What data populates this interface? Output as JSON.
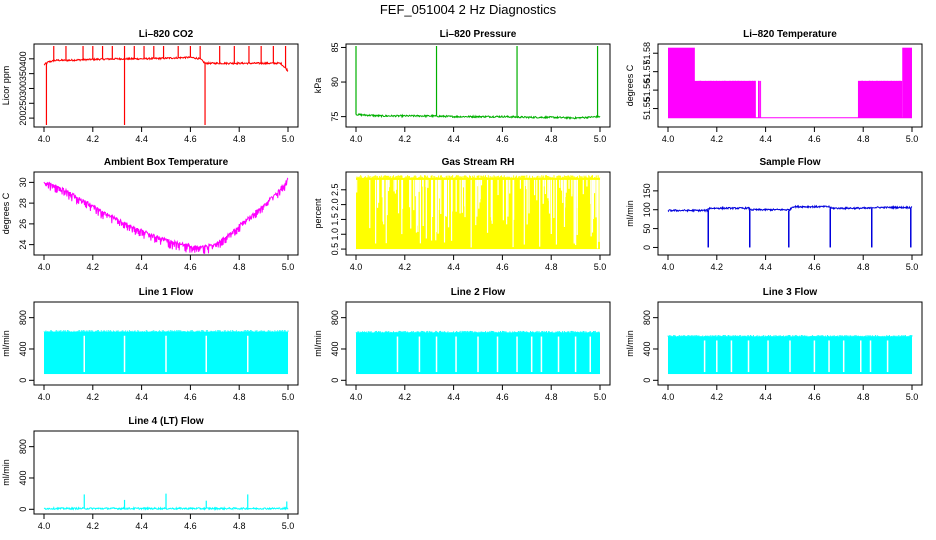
{
  "figure_title": "FEF_051004  2 Hz Diagnostics",
  "chart_data": [
    {
      "type": "line",
      "title": "Li–820 CO2",
      "xlabel": "",
      "ylabel": "Licor ppm",
      "xlim": [
        4.0,
        5.0
      ],
      "ylim": [
        170,
        450
      ],
      "xticks": [
        "4.0",
        "4.2",
        "4.4",
        "4.6",
        "4.8",
        "5.0"
      ],
      "yticks": [
        "200",
        "250",
        "300",
        "350",
        "400"
      ],
      "color": "#ff0000",
      "series": [
        {
          "x": [
            4.0,
            4.02,
            4.05,
            4.1,
            4.2,
            4.3,
            4.4,
            4.5,
            4.6,
            4.64,
            4.66,
            4.7,
            4.8,
            4.9,
            4.97,
            5.0
          ],
          "values": [
            380,
            390,
            395,
            395,
            398,
            400,
            400,
            402,
            405,
            400,
            385,
            385,
            385,
            385,
            385,
            360
          ]
        }
      ],
      "spikes_up": [
        4.04,
        4.09,
        4.16,
        4.2,
        4.24,
        4.28,
        4.33,
        4.37,
        4.41,
        4.45,
        4.49,
        4.55,
        4.6,
        4.64,
        4.72,
        4.78,
        4.84,
        4.89,
        4.94,
        4.99
      ],
      "spikes_down": [
        4.01,
        4.33,
        4.66
      ]
    },
    {
      "type": "line",
      "title": "Li–820 Pressure",
      "xlabel": "",
      "ylabel": "kPa",
      "xlim": [
        4.0,
        5.0
      ],
      "ylim": [
        73.5,
        85.5
      ],
      "xticks": [
        "4.0",
        "4.2",
        "4.4",
        "4.6",
        "4.8",
        "5.0"
      ],
      "yticks": [
        "75",
        "80",
        "85"
      ],
      "color": "#00b000",
      "series": [
        {
          "x": [
            4.0,
            4.1,
            4.2,
            4.3,
            4.4,
            4.5,
            4.6,
            4.7,
            4.8,
            4.9,
            5.0
          ],
          "values": [
            75.3,
            75.1,
            75.1,
            75.1,
            75.0,
            75.0,
            75.0,
            74.9,
            74.9,
            74.8,
            75.0
          ]
        }
      ],
      "spikes_up": [
        4.0,
        4.33,
        4.66,
        4.99
      ]
    },
    {
      "type": "area",
      "title": "Li–820 Temperature",
      "xlabel": "",
      "ylabel": "degrees C",
      "xlim": [
        4.0,
        5.0
      ],
      "ylim": [
        51.54,
        51.585
      ],
      "xticks": [
        "4.0",
        "4.2",
        "4.4",
        "4.6",
        "4.8",
        "5.0"
      ],
      "yticks": [
        "51.55",
        "51.56",
        "51.57",
        "51.58"
      ],
      "color": "#ff00ff",
      "segments": [
        {
          "x0": 4.0,
          "x1": 4.11,
          "low": 51.545,
          "high": 51.583
        },
        {
          "x0": 4.11,
          "x1": 4.36,
          "low": 51.545,
          "high": 51.565
        },
        {
          "x0": 4.78,
          "x1": 4.96,
          "low": 51.545,
          "high": 51.565
        },
        {
          "x0": 4.96,
          "x1": 5.0,
          "low": 51.545,
          "high": 51.583
        }
      ],
      "baseline": 51.545
    },
    {
      "type": "line",
      "title": "Ambient Box Temperature",
      "xlabel": "",
      "ylabel": "degrees C",
      "xlim": [
        4.0,
        5.0
      ],
      "ylim": [
        23,
        31
      ],
      "xticks": [
        "4.0",
        "4.2",
        "4.4",
        "4.6",
        "4.8",
        "5.0"
      ],
      "yticks": [
        "24",
        "26",
        "28",
        "30"
      ],
      "color": "#ff00ff",
      "series": [
        {
          "x": [
            4.0,
            4.05,
            4.1,
            4.15,
            4.2,
            4.25,
            4.3,
            4.35,
            4.4,
            4.45,
            4.5,
            4.55,
            4.6,
            4.65,
            4.7,
            4.75,
            4.8,
            4.85,
            4.9,
            4.95,
            5.0
          ],
          "values": [
            30.2,
            29.8,
            29.2,
            28.5,
            27.9,
            27.2,
            26.6,
            26.0,
            25.5,
            25.0,
            24.6,
            24.3,
            24.0,
            23.9,
            24.2,
            25.0,
            26.0,
            27.0,
            28.0,
            29.0,
            30.5
          ]
        }
      ],
      "band": 0.9
    },
    {
      "type": "area",
      "title": "Gas Stream RH",
      "xlabel": "",
      "ylabel": "percent",
      "xlim": [
        4.0,
        5.0
      ],
      "ylim": [
        0.3,
        3.1
      ],
      "xticks": [
        "4.0",
        "4.2",
        "4.4",
        "4.6",
        "4.8",
        "5.0"
      ],
      "yticks": [
        "0.5",
        "1.0",
        "1.5",
        "2.0",
        "2.5"
      ],
      "color": "#ffff00",
      "low": 0.5,
      "high": 2.9
    },
    {
      "type": "line",
      "title": "Sample Flow",
      "xlabel": "",
      "ylabel": "ml/min",
      "xlim": [
        4.0,
        5.0
      ],
      "ylim": [
        -20,
        200
      ],
      "xticks": [
        "4.0",
        "4.2",
        "4.4",
        "4.6",
        "4.8",
        "5.0"
      ],
      "yticks": [
        "0",
        "50",
        "100",
        "150"
      ],
      "color": "#0000dd",
      "series": [
        {
          "x": [
            4.0,
            4.16,
            4.17,
            4.33,
            4.34,
            4.5,
            4.51,
            4.66,
            4.67,
            4.83,
            4.84,
            4.99
          ],
          "values": [
            98,
            98,
            104,
            104,
            100,
            100,
            108,
            108,
            104,
            104,
            106,
            106
          ]
        }
      ],
      "drops": [
        4.165,
        4.335,
        4.495,
        4.665,
        4.835,
        4.995
      ]
    },
    {
      "type": "area",
      "title": "Line 1 Flow",
      "xlabel": "",
      "ylabel": "ml/min",
      "xlim": [
        4.0,
        5.0
      ],
      "ylim": [
        -60,
        1000
      ],
      "xticks": [
        "4.0",
        "4.2",
        "4.4",
        "4.6",
        "4.8",
        "5.0"
      ],
      "yticks": [
        "0",
        "400",
        "800"
      ],
      "color": "#00ffff",
      "low": 80,
      "high": 620,
      "gaps": [
        4.165,
        4.33,
        4.5,
        4.665,
        4.835
      ]
    },
    {
      "type": "area",
      "title": "Line 2 Flow",
      "xlabel": "",
      "ylabel": "ml/min",
      "xlim": [
        4.0,
        5.0
      ],
      "ylim": [
        -60,
        1000
      ],
      "xticks": [
        "4.0",
        "4.2",
        "4.4",
        "4.6",
        "4.8",
        "5.0"
      ],
      "yticks": [
        "0",
        "400",
        "800"
      ],
      "color": "#00ffff",
      "low": 80,
      "high": 610,
      "gaps": [
        4.17,
        4.26,
        4.33,
        4.41,
        4.5,
        4.58,
        4.66,
        4.72,
        4.76,
        4.83,
        4.9,
        4.96
      ]
    },
    {
      "type": "area",
      "title": "Line 3 Flow",
      "xlabel": "",
      "ylabel": "ml/min",
      "xlim": [
        4.0,
        5.0
      ],
      "ylim": [
        -60,
        1000
      ],
      "xticks": [
        "4.0",
        "4.2",
        "4.4",
        "4.6",
        "4.8",
        "5.0"
      ],
      "yticks": [
        "0",
        "400",
        "800"
      ],
      "color": "#00ffff",
      "low": 80,
      "high": 560,
      "gaps": [
        4.15,
        4.2,
        4.26,
        4.33,
        4.41,
        4.5,
        4.6,
        4.66,
        4.72,
        4.79,
        4.83,
        4.9
      ]
    },
    {
      "type": "line",
      "title": "Line 4 (LT) Flow",
      "xlabel": "",
      "ylabel": "ml/min",
      "xlim": [
        4.0,
        5.0
      ],
      "ylim": [
        -60,
        1000
      ],
      "xticks": [
        "4.0",
        "4.2",
        "4.4",
        "4.6",
        "4.8",
        "5.0"
      ],
      "yticks": [
        "0",
        "400",
        "800"
      ],
      "color": "#00ffff",
      "series": [
        {
          "x": [
            4.0,
            5.0
          ],
          "values": [
            10,
            10
          ]
        }
      ],
      "spikes_up": [
        {
          "x": 4.165,
          "v": 190
        },
        {
          "x": 4.33,
          "v": 120
        },
        {
          "x": 4.5,
          "v": 200
        },
        {
          "x": 4.665,
          "v": 110
        },
        {
          "x": 4.835,
          "v": 190
        },
        {
          "x": 4.995,
          "v": 100
        }
      ]
    }
  ]
}
